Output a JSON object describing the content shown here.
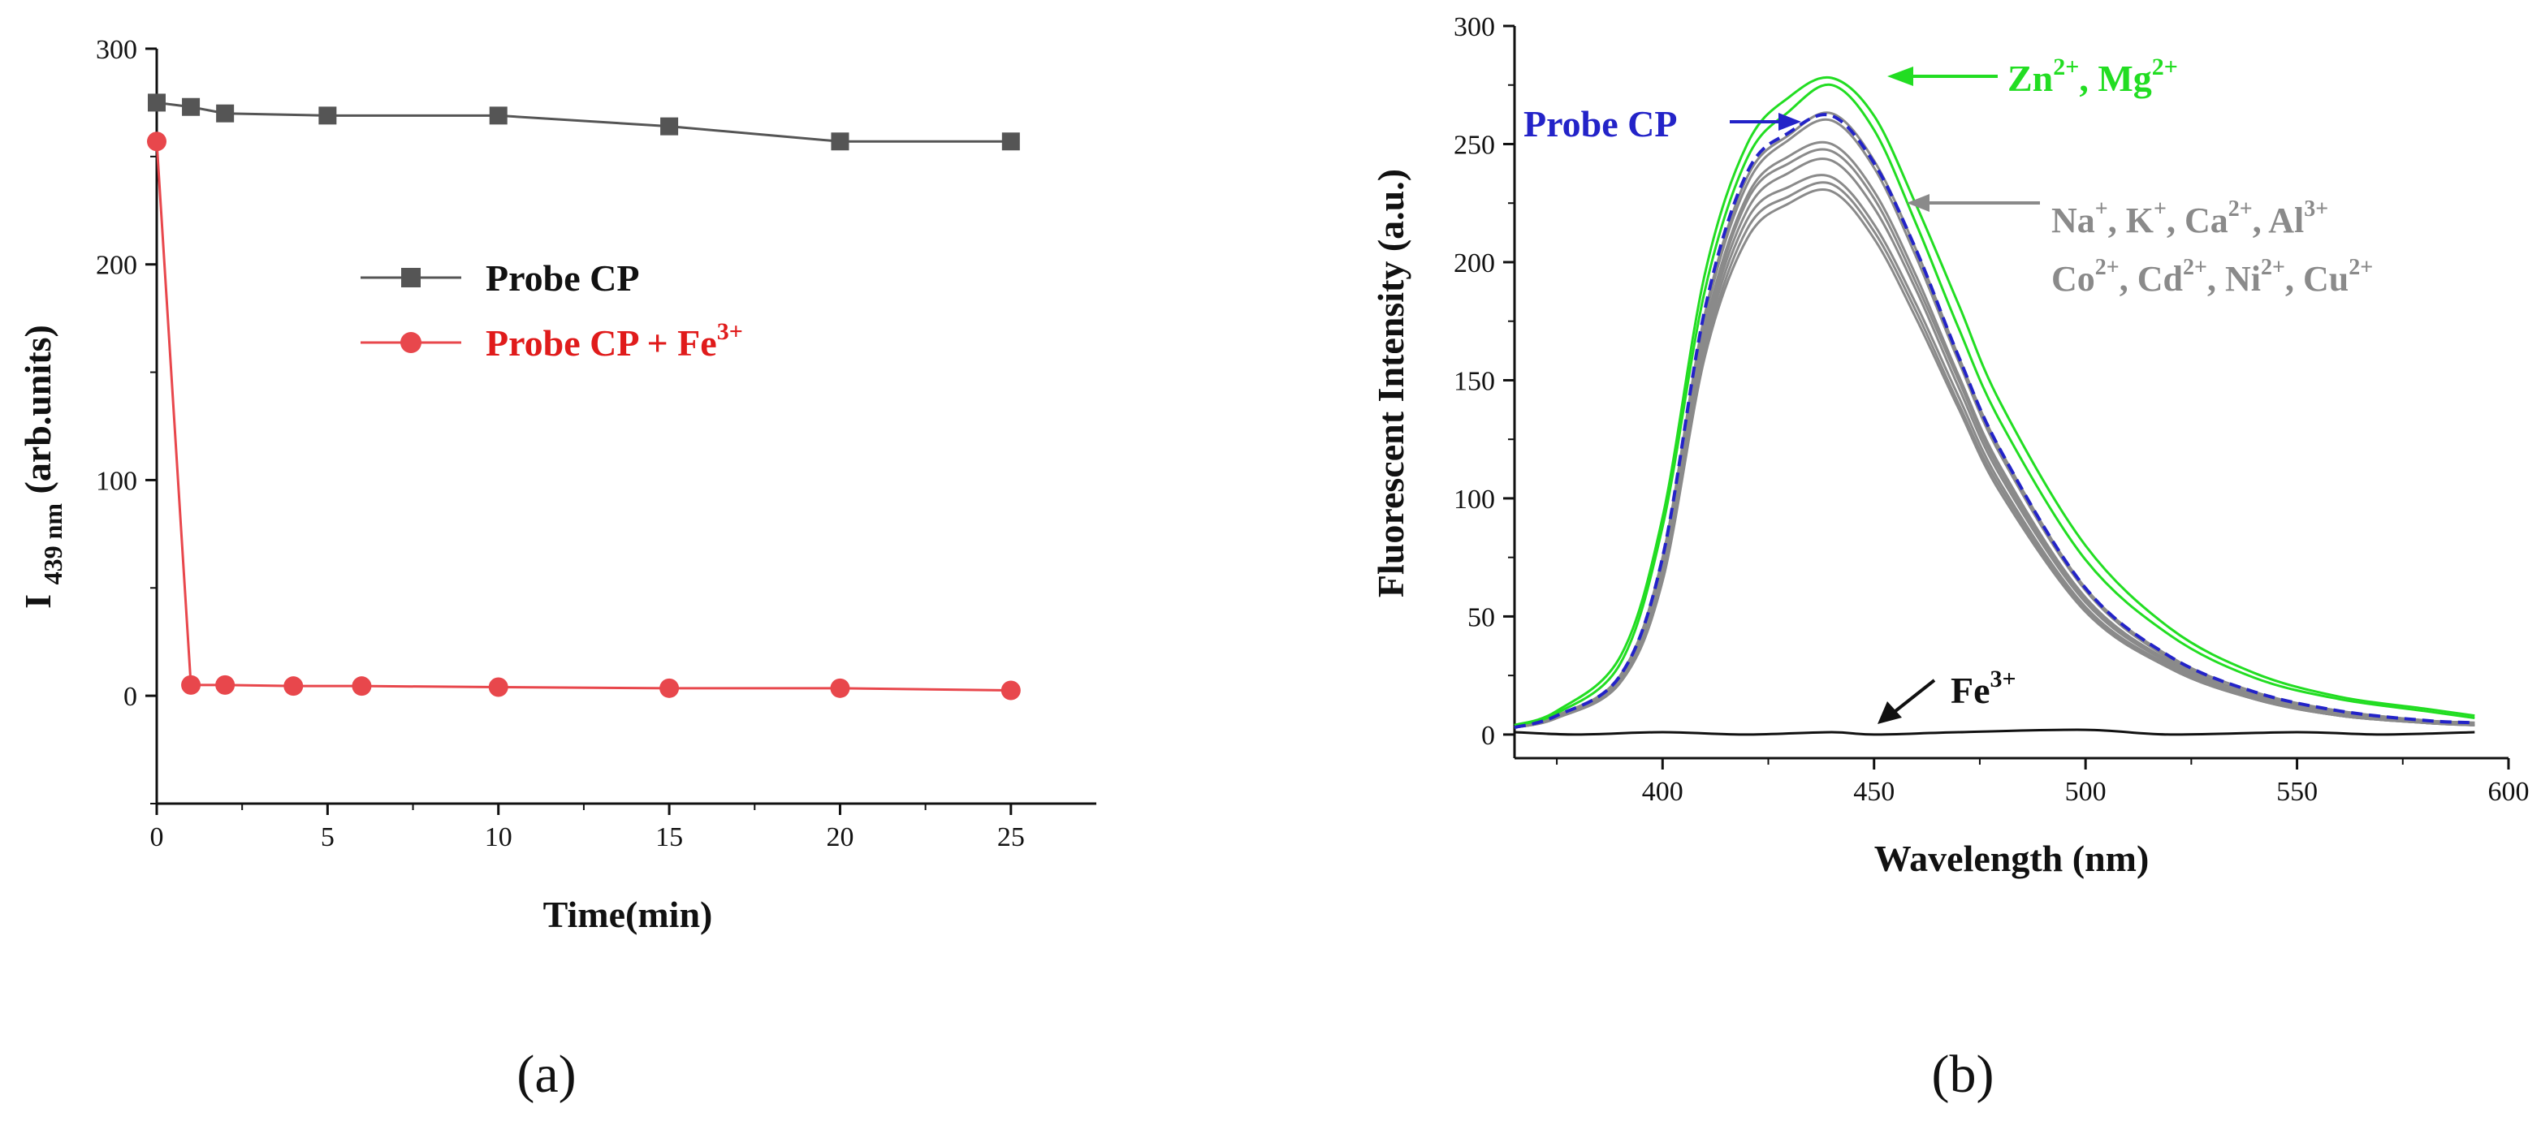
{
  "chart_data": [
    {
      "type": "line",
      "panel_label": "(a)",
      "title": "",
      "xlabel": "Time(min)",
      "ylabel_main": "I",
      "ylabel_sub": "439 nm",
      "ylabel_unit": "(arb.units)",
      "xlim": [
        0,
        27.5
      ],
      "ylim": [
        -50,
        300
      ],
      "xticks": [
        0,
        5,
        10,
        15,
        20,
        25
      ],
      "yticks": [
        0,
        100,
        200,
        300
      ],
      "legend_position": "center-right",
      "series": [
        {
          "name": "Probe CP",
          "name_sup": "",
          "color": "#555555",
          "marker": "square",
          "x": [
            0,
            1,
            2,
            5,
            10,
            15,
            20,
            25
          ],
          "y": [
            275,
            273,
            270,
            269,
            269,
            264,
            257,
            257
          ]
        },
        {
          "name": "Probe CP + Fe",
          "name_sup": "3+",
          "color": "#e8474c",
          "marker": "circle",
          "x": [
            0,
            1,
            2,
            4,
            6,
            10,
            15,
            20,
            25
          ],
          "y": [
            257,
            5,
            5,
            4.5,
            4.5,
            4,
            3.5,
            3.5,
            2.5
          ]
        }
      ]
    },
    {
      "type": "line",
      "panel_label": "(b)",
      "title": "",
      "xlabel": "Wavelength (nm)",
      "ylabel": "Fluorescent Intensity (a.u.)",
      "xlim": [
        365,
        600
      ],
      "ylim": [
        -10,
        300
      ],
      "xticks": [
        400,
        450,
        500,
        550,
        600
      ],
      "yticks": [
        0,
        50,
        100,
        150,
        200,
        250,
        300
      ],
      "annotations": {
        "zn_mg": {
          "parts": [
            "Zn",
            "2+",
            ", Mg",
            "2+"
          ],
          "color": "#22dd22"
        },
        "probe": {
          "text": "Probe CP",
          "color": "#2323c8"
        },
        "other_line1": {
          "parts": [
            "Na",
            "+",
            ", K",
            "+",
            ", Ca",
            "2+",
            ", Al",
            "3+"
          ],
          "color": "#8a8a8a"
        },
        "other_line2": {
          "parts": [
            "Co",
            "2+",
            ", Cd",
            "2+",
            ", Ni",
            "2+",
            ", Cu",
            "2+"
          ],
          "color": "#8a8a8a"
        },
        "fe": {
          "parts": [
            "Fe",
            "3+"
          ],
          "color": "#111111"
        }
      },
      "series": [
        {
          "name": "Zn2+",
          "color": "#22dd22",
          "x": [
            365,
            375,
            390,
            400,
            410,
            420,
            430,
            440,
            450,
            460,
            470,
            480,
            500,
            520,
            540,
            560,
            580,
            592
          ],
          "y": [
            4,
            10,
            33,
            92,
            195,
            250,
            270,
            278,
            262,
            224,
            182,
            140,
            80,
            45,
            26,
            16,
            11,
            8
          ]
        },
        {
          "name": "Mg2+",
          "color": "#22dd22",
          "x": [
            365,
            375,
            390,
            400,
            410,
            420,
            430,
            440,
            450,
            460,
            470,
            480,
            500,
            520,
            540,
            560,
            580,
            592
          ],
          "y": [
            4,
            9,
            30,
            88,
            188,
            244,
            264,
            275,
            256,
            216,
            172,
            132,
            74,
            42,
            24,
            15,
            10,
            7
          ]
        },
        {
          "name": "Probe CP",
          "color": "#2323c8",
          "x": [
            365,
            375,
            390,
            400,
            410,
            420,
            430,
            440,
            450,
            460,
            470,
            480,
            500,
            520,
            540,
            560,
            580,
            592
          ],
          "y": [
            3,
            8,
            25,
            75,
            180,
            238,
            255,
            262,
            242,
            205,
            160,
            120,
            62,
            33,
            18,
            10,
            6,
            5
          ]
        },
        {
          "name": "Na+",
          "color": "#8a8a8a",
          "x": [
            365,
            375,
            390,
            400,
            410,
            420,
            430,
            440,
            450,
            460,
            470,
            480,
            500,
            520,
            540,
            560,
            580,
            592
          ],
          "y": [
            3,
            8,
            25,
            75,
            178,
            236,
            254,
            263,
            243,
            205,
            160,
            120,
            62,
            33,
            18,
            10,
            6,
            5
          ]
        },
        {
          "name": "K+",
          "color": "#8a8a8a",
          "x": [
            365,
            375,
            390,
            400,
            410,
            420,
            430,
            440,
            450,
            460,
            470,
            480,
            500,
            520,
            540,
            560,
            580,
            592
          ],
          "y": [
            3,
            8,
            25,
            74,
            176,
            233,
            252,
            260,
            240,
            202,
            158,
            118,
            61,
            32,
            17,
            10,
            6,
            5
          ]
        },
        {
          "name": "Ca2+",
          "color": "#8a8a8a",
          "x": [
            365,
            375,
            390,
            400,
            410,
            420,
            430,
            440,
            450,
            460,
            470,
            480,
            500,
            520,
            540,
            560,
            580,
            592
          ],
          "y": [
            3,
            8,
            24,
            72,
            172,
            228,
            245,
            250,
            230,
            194,
            152,
            113,
            58,
            31,
            17,
            9,
            6,
            4
          ]
        },
        {
          "name": "Al3+",
          "color": "#8a8a8a",
          "x": [
            365,
            375,
            390,
            400,
            410,
            420,
            430,
            440,
            450,
            460,
            470,
            480,
            500,
            520,
            540,
            560,
            580,
            592
          ],
          "y": [
            3,
            8,
            24,
            71,
            170,
            226,
            242,
            247,
            227,
            191,
            150,
            111,
            57,
            30,
            16,
            9,
            5,
            4
          ]
        },
        {
          "name": "Co2+",
          "color": "#8a8a8a",
          "x": [
            365,
            375,
            390,
            400,
            410,
            420,
            430,
            440,
            450,
            460,
            470,
            480,
            500,
            520,
            540,
            560,
            580,
            592
          ],
          "y": [
            3,
            8,
            23,
            70,
            168,
            222,
            238,
            243,
            223,
            188,
            147,
            109,
            56,
            30,
            16,
            9,
            5,
            4
          ]
        },
        {
          "name": "Cd2+",
          "color": "#8a8a8a",
          "x": [
            365,
            375,
            390,
            400,
            410,
            420,
            430,
            440,
            450,
            460,
            470,
            480,
            500,
            520,
            540,
            560,
            580,
            592
          ],
          "y": [
            3,
            7,
            23,
            68,
            165,
            218,
            232,
            236,
            216,
            182,
            143,
            106,
            54,
            29,
            15,
            8,
            5,
            4
          ]
        },
        {
          "name": "Ni2+",
          "color": "#8a8a8a",
          "x": [
            365,
            375,
            390,
            400,
            410,
            420,
            430,
            440,
            450,
            460,
            470,
            480,
            500,
            520,
            540,
            560,
            580,
            592
          ],
          "y": [
            3,
            7,
            22,
            66,
            162,
            214,
            228,
            233,
            213,
            179,
            140,
            104,
            53,
            28,
            15,
            8,
            5,
            4
          ]
        },
        {
          "name": "Cu2+",
          "color": "#8a8a8a",
          "x": [
            365,
            375,
            390,
            400,
            410,
            420,
            430,
            440,
            450,
            460,
            470,
            480,
            500,
            520,
            540,
            560,
            580,
            592
          ],
          "y": [
            3,
            7,
            22,
            65,
            160,
            210,
            225,
            230,
            210,
            176,
            138,
            102,
            52,
            28,
            15,
            8,
            5,
            4
          ]
        },
        {
          "name": "Fe3+",
          "color": "#111111",
          "x": [
            365,
            380,
            400,
            420,
            440,
            450,
            470,
            500,
            520,
            550,
            570,
            592
          ],
          "y": [
            1,
            0,
            1,
            0,
            1,
            0,
            1,
            2,
            0,
            1,
            0,
            1
          ]
        }
      ]
    }
  ]
}
